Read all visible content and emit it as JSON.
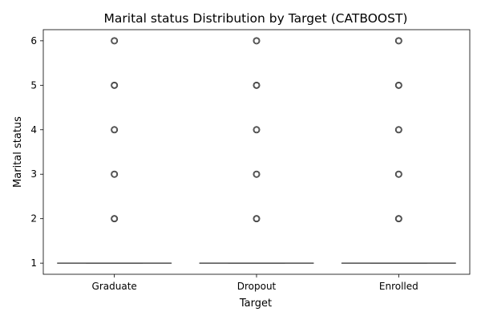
{
  "chart_data": {
    "type": "box",
    "title": "Marital status Distribution by Target (CATBOOST)",
    "xlabel": "Target",
    "ylabel": "Marital status",
    "categories": [
      "Graduate",
      "Dropout",
      "Enrolled"
    ],
    "yticks": [
      1,
      2,
      3,
      4,
      5,
      6
    ],
    "ylim": [
      0.75,
      6.25
    ],
    "grid": false,
    "legend": "none",
    "boxes": [
      {
        "category": "Graduate",
        "q1": 1,
        "median": 1,
        "q3": 1,
        "whisker_low": 1,
        "whisker_high": 1,
        "outliers": [
          2,
          3,
          4,
          5,
          6
        ]
      },
      {
        "category": "Dropout",
        "q1": 1,
        "median": 1,
        "q3": 1,
        "whisker_low": 1,
        "whisker_high": 1,
        "outliers": [
          2,
          3,
          4,
          5,
          6
        ]
      },
      {
        "category": "Enrolled",
        "q1": 1,
        "median": 1,
        "q3": 1,
        "whisker_low": 1,
        "whisker_high": 1,
        "outliers": [
          2,
          3,
          4,
          5,
          6
        ]
      }
    ],
    "colors": {
      "box_fill": "#4a7fb6",
      "line": "#545454",
      "outlier_edge": "#3d3d3d"
    }
  }
}
